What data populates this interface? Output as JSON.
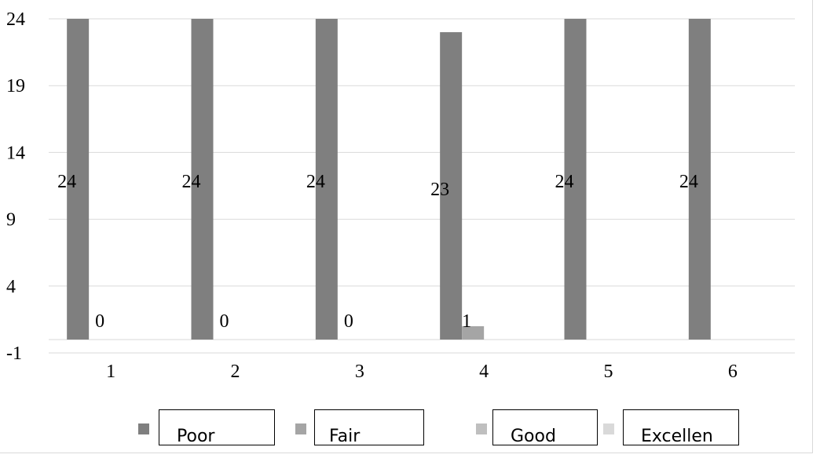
{
  "chart_data": {
    "type": "bar",
    "categories": [
      "1",
      "2",
      "3",
      "4",
      "5",
      "6"
    ],
    "series": [
      {
        "name": "Poor",
        "values": [
          24,
          24,
          24,
          23,
          24,
          24
        ],
        "color": "#7f7f7f"
      },
      {
        "name": "Fair",
        "values": [
          0,
          0,
          0,
          1,
          0,
          0
        ],
        "color": "#a5a5a5"
      },
      {
        "name": "Good",
        "values": [
          0,
          0,
          0,
          0,
          0,
          0
        ],
        "color": "#bfbfbf"
      },
      {
        "name": "Excellen",
        "values": [
          0,
          0,
          0,
          0,
          0,
          0
        ],
        "color": "#d9d9d9"
      }
    ],
    "data_labels": {
      "Poor": [
        "24",
        "24",
        "24",
        "23",
        "24",
        "24"
      ],
      "Fair": [
        "0",
        "0",
        "0",
        "1",
        "",
        ""
      ]
    },
    "yticks": [
      "24",
      "19",
      "14",
      "9",
      "4",
      "-1"
    ],
    "ylim": [
      -1,
      24
    ],
    "grid": true,
    "legend_position": "bottom",
    "title": "",
    "xlabel": "",
    "ylabel": ""
  }
}
